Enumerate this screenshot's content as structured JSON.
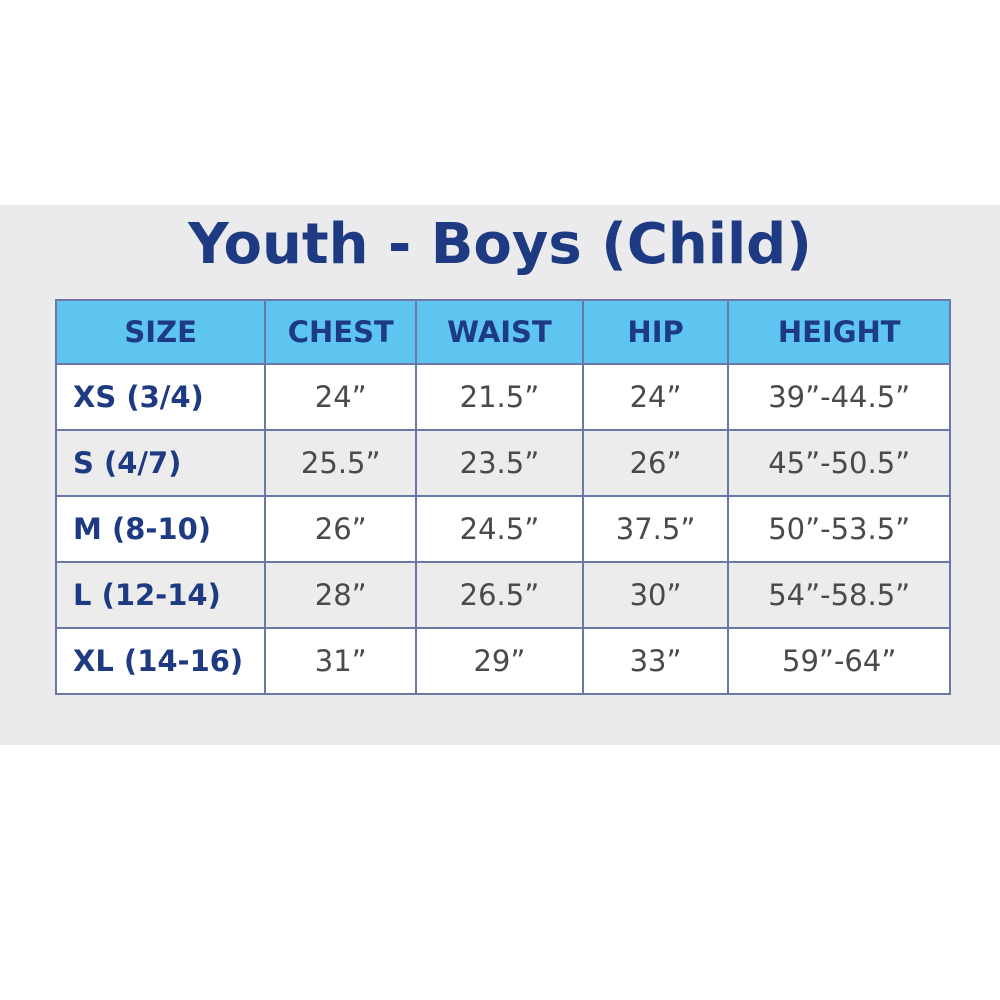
{
  "title": "Youth - Boys (Child)",
  "colors": {
    "title": "#1d3a82",
    "header_bg": "#5ec4f0",
    "band_bg": "#ebebed"
  },
  "table": {
    "headers": [
      "SIZE",
      "CHEST",
      "WAIST",
      "HIP",
      "HEIGHT"
    ],
    "rows": [
      [
        "XS (3/4)",
        "24”",
        "21.5”",
        "24”",
        "39”-44.5”"
      ],
      [
        "S (4/7)",
        "25.5”",
        "23.5”",
        "26”",
        "45”-50.5”"
      ],
      [
        "M (8-10)",
        "26”",
        "24.5”",
        "37.5”",
        "50”-53.5”"
      ],
      [
        "L (12-14)",
        "28”",
        "26.5”",
        "30”",
        "54”-58.5”"
      ],
      [
        "XL (14-16)",
        "31”",
        "29”",
        "33”",
        "59”-64”"
      ]
    ]
  }
}
